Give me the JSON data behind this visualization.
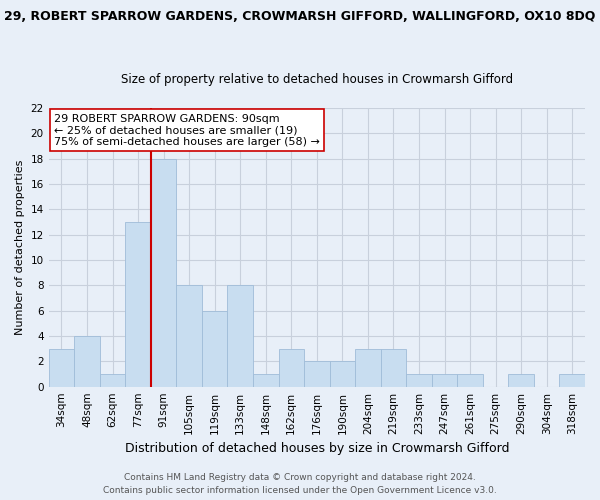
{
  "title_line1": "29, ROBERT SPARROW GARDENS, CROWMARSH GIFFORD, WALLINGFORD, OX10 8DQ",
  "title_line2": "Size of property relative to detached houses in Crowmarsh Gifford",
  "xlabel": "Distribution of detached houses by size in Crowmarsh Gifford",
  "ylabel": "Number of detached properties",
  "bar_labels": [
    "34sqm",
    "48sqm",
    "62sqm",
    "77sqm",
    "91sqm",
    "105sqm",
    "119sqm",
    "133sqm",
    "148sqm",
    "162sqm",
    "176sqm",
    "190sqm",
    "204sqm",
    "219sqm",
    "233sqm",
    "247sqm",
    "261sqm",
    "275sqm",
    "290sqm",
    "304sqm",
    "318sqm"
  ],
  "bar_values": [
    3,
    4,
    1,
    13,
    18,
    8,
    6,
    8,
    1,
    3,
    2,
    2,
    3,
    3,
    1,
    1,
    1,
    0,
    1,
    0,
    1
  ],
  "bar_color": "#c8ddf0",
  "bar_edge_color": "#a0bcd8",
  "ylim": [
    0,
    22
  ],
  "yticks": [
    0,
    2,
    4,
    6,
    8,
    10,
    12,
    14,
    16,
    18,
    20,
    22
  ],
  "annotation_title": "29 ROBERT SPARROW GARDENS: 90sqm",
  "annotation_line1": "← 25% of detached houses are smaller (19)",
  "annotation_line2": "75% of semi-detached houses are larger (58) →",
  "vline_color": "#cc0000",
  "annotation_box_color": "#ffffff",
  "annotation_box_edge": "#cc0000",
  "footer_line1": "Contains HM Land Registry data © Crown copyright and database right 2024.",
  "footer_line2": "Contains public sector information licensed under the Open Government Licence v3.0.",
  "background_color": "#e8eff8",
  "grid_color": "#c8d0dc",
  "title1_fontsize": 9.0,
  "title2_fontsize": 8.5,
  "ylabel_fontsize": 8.0,
  "xlabel_fontsize": 9.0,
  "tick_fontsize": 7.5,
  "footer_fontsize": 6.5,
  "annot_fontsize": 8.0
}
